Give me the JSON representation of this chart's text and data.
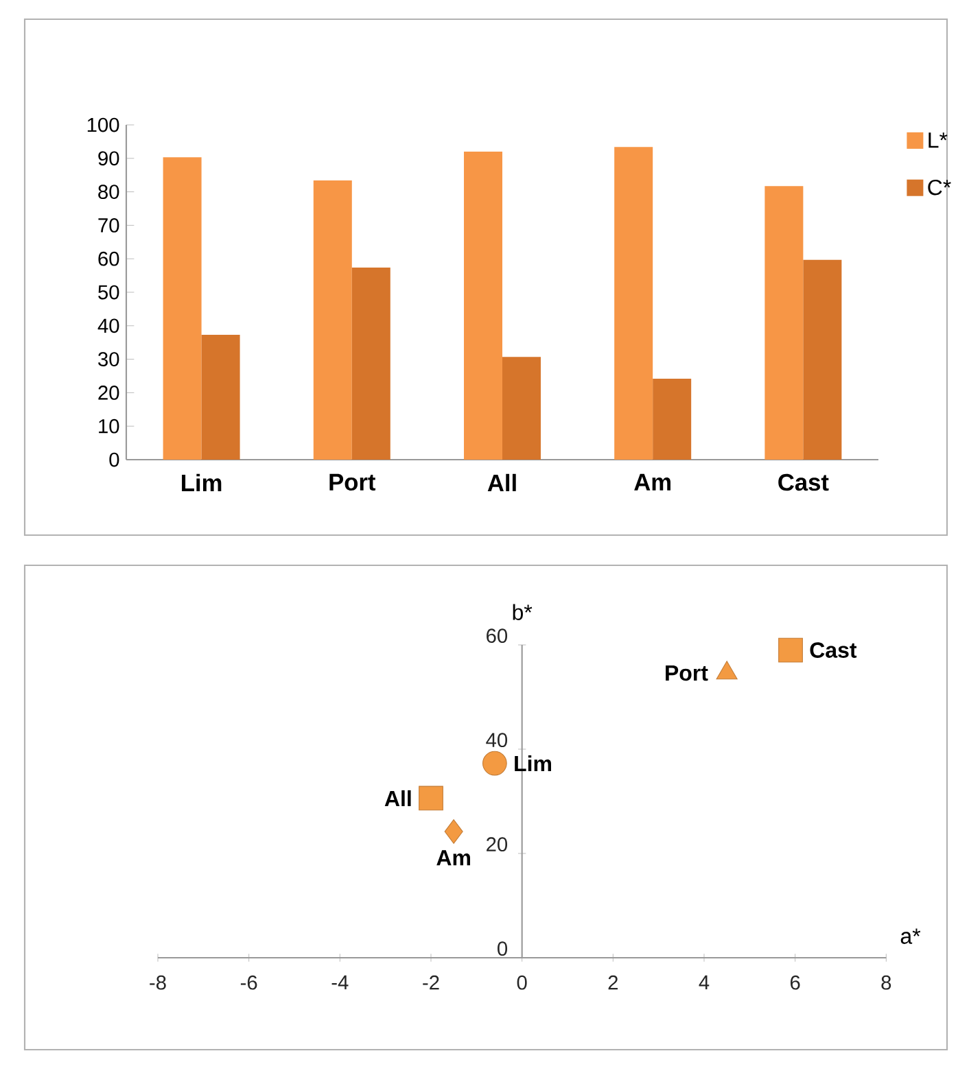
{
  "chart_data": [
    {
      "type": "bar",
      "categories": [
        "Lim",
        "Port",
        "All",
        "Am",
        "Cast"
      ],
      "series": [
        {
          "name": "L*",
          "color": "#f79646",
          "values": [
            90.3,
            83.4,
            92.0,
            93.4,
            81.7
          ]
        },
        {
          "name": "C*",
          "color": "#d6752b",
          "values": [
            37.3,
            57.4,
            30.7,
            24.2,
            59.7
          ]
        }
      ],
      "ylim": [
        0,
        100
      ],
      "yticks": [
        0,
        10,
        20,
        30,
        40,
        50,
        60,
        70,
        80,
        90,
        100
      ],
      "legend": "right"
    },
    {
      "type": "scatter",
      "xlabel": "a*",
      "ylabel": "b*",
      "series": [
        {
          "name": "Lim",
          "color": "#f39a42",
          "x": [
            -0.6
          ],
          "values": [
            37.3
          ],
          "marker": "circle"
        },
        {
          "name": "Port",
          "color": "#f39a42",
          "x": [
            4.5
          ],
          "values": [
            54.6
          ],
          "marker": "triangle"
        },
        {
          "name": "All",
          "color": "#f39a42",
          "x": [
            -2.0
          ],
          "values": [
            30.6
          ],
          "marker": "square"
        },
        {
          "name": "Am",
          "color": "#f39a42",
          "x": [
            -1.5
          ],
          "values": [
            24.2
          ],
          "marker": "diamond"
        },
        {
          "name": "Cast",
          "color": "#f39a42",
          "x": [
            5.9
          ],
          "values": [
            59.0
          ],
          "marker": "square"
        }
      ],
      "xlim": [
        -8,
        8
      ],
      "xticks": [
        -8,
        -6,
        -4,
        -2,
        0,
        2,
        4,
        6,
        8
      ],
      "ylim": [
        0,
        60
      ],
      "yticks": [
        0,
        20,
        40,
        60
      ]
    }
  ]
}
